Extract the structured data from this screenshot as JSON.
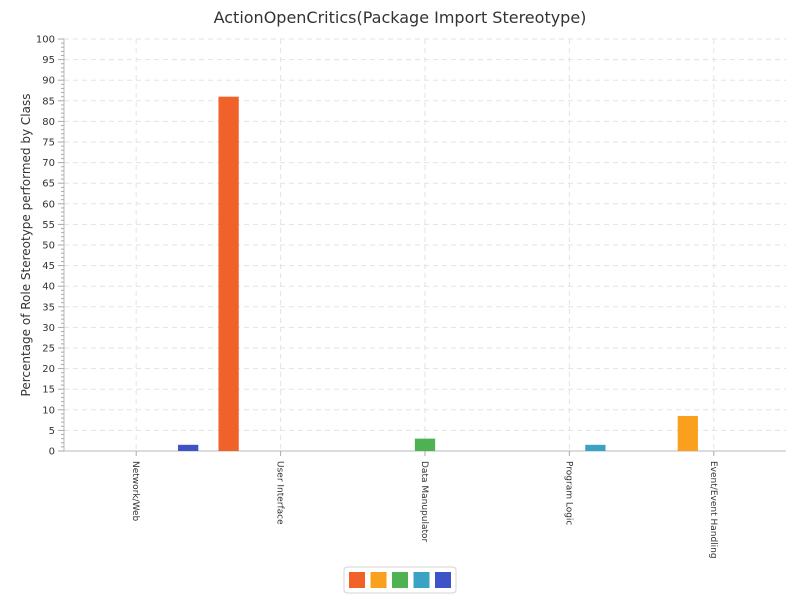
{
  "chart_data": {
    "type": "bar",
    "title": "ActionOpenCritics(Package Import Stereotype)",
    "xlabel": "",
    "ylabel": "Percentage of Role Stereotype performed by Class",
    "ylim": [
      0,
      100
    ],
    "y_ticks": [
      "0",
      "5",
      "10",
      "15",
      "20",
      "25",
      "30",
      "35",
      "40",
      "45",
      "50",
      "55",
      "60",
      "65",
      "70",
      "75",
      "80",
      "85",
      "90",
      "95",
      "100"
    ],
    "grid": true,
    "legend_position": "bottom",
    "categories": [
      "Network/Web",
      "User Interface",
      "Data Manupulator",
      "Program Logic",
      "Event/Event Handling"
    ],
    "series": [
      {
        "color": "#f06229",
        "values": [
          0,
          86,
          0,
          0,
          0
        ]
      },
      {
        "color": "#f9a11e",
        "values": [
          0,
          0,
          0,
          0,
          8.5
        ]
      },
      {
        "color": "#4eb152",
        "values": [
          0,
          0,
          3,
          0,
          0
        ]
      },
      {
        "color": "#3aa2c4",
        "values": [
          0,
          0,
          0,
          1.5,
          0
        ]
      },
      {
        "color": "#3f53c8",
        "values": [
          1.5,
          0,
          0,
          0,
          0
        ]
      }
    ]
  }
}
